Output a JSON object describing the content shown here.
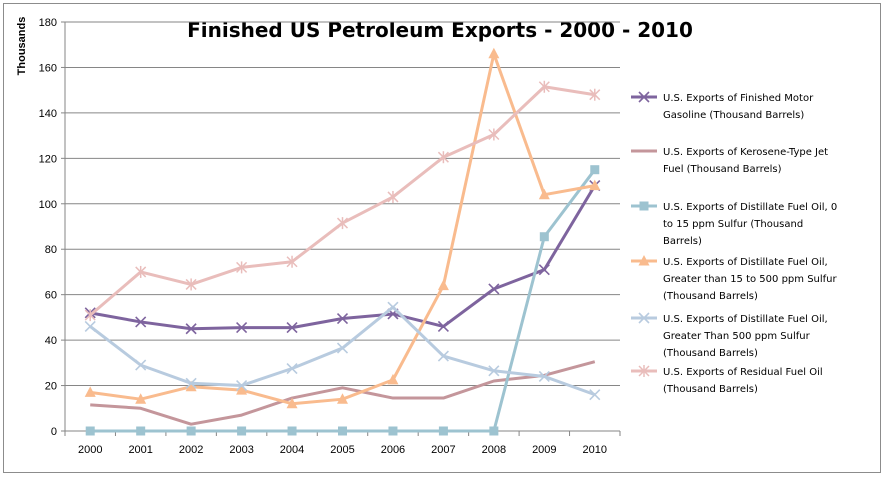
{
  "chart_data": {
    "type": "line",
    "title": "Finished US Petroleum Exports - 2000 - 2010",
    "ylabel": "Thousands",
    "xlabel": "",
    "ylim": [
      0,
      180
    ],
    "yticks": [
      0,
      20,
      40,
      60,
      80,
      100,
      120,
      140,
      160,
      180
    ],
    "categories": [
      "2000",
      "2001",
      "2002",
      "2003",
      "2004",
      "2005",
      "2006",
      "2007",
      "2008",
      "2009",
      "2010"
    ],
    "grid": true,
    "legend_position": "right",
    "series": [
      {
        "name": "U.S. Exports of Finished Motor Gasoline (Thousand Barrels)",
        "legend_lines": [
          "U.S. Exports of Finished Motor",
          "Gasoline (Thousand Barrels)"
        ],
        "color": "#7e649e",
        "marker": "x",
        "values": [
          52,
          48,
          45,
          45.5,
          45.5,
          49.5,
          51.5,
          46,
          62.5,
          71,
          108
        ]
      },
      {
        "name": "U.S. Exports of Kerosene-Type Jet Fuel (Thousand Barrels)",
        "legend_lines": [
          "U.S. Exports of Kerosene-Type Jet",
          "Fuel (Thousand Barrels)"
        ],
        "color": "#c4969b",
        "marker": "none",
        "values": [
          11.5,
          10,
          3,
          7,
          14.5,
          19,
          14.5,
          14.5,
          22,
          24.5,
          30.5
        ]
      },
      {
        "name": "U.S. Exports of Distillate Fuel Oil, 0 to 15 ppm Sulfur (Thousand Barrels)",
        "legend_lines": [
          "U.S. Exports of Distillate Fuel Oil, 0",
          "to 15 ppm Sulfur (Thousand",
          "Barrels)"
        ],
        "color": "#9dc3d0",
        "marker": "square",
        "values": [
          0,
          0,
          0,
          0,
          0,
          0,
          0,
          0,
          0,
          85.5,
          115
        ]
      },
      {
        "name": "U.S. Exports of Distillate Fuel Oil, Greater than 15 to 500 ppm Sulfur (Thousand Barrels)",
        "legend_lines": [
          "U.S. Exports of Distillate Fuel Oil,",
          "Greater than 15 to 500 ppm Sulfur",
          "(Thousand Barrels)"
        ],
        "color": "#f9bb8e",
        "marker": "triangle",
        "values": [
          17,
          14,
          19.5,
          18,
          12,
          14,
          22.5,
          64,
          166,
          104,
          108
        ]
      },
      {
        "name": "U.S. Exports of Distillate Fuel Oil, Greater Than 500 ppm Sulfur (Thousand Barrels)",
        "legend_lines": [
          "U.S. Exports of Distillate Fuel Oil,",
          "Greater Than 500 ppm Sulfur",
          "(Thousand Barrels)"
        ],
        "color": "#b8cbdf",
        "marker": "x",
        "values": [
          46,
          29,
          21,
          20,
          27.5,
          36.5,
          54.5,
          33,
          26.5,
          24,
          16
        ]
      },
      {
        "name": "U.S. Exports of Residual Fuel Oil (Thousand Barrels)",
        "legend_lines": [
          "U.S. Exports of Residual Fuel Oil",
          "(Thousand Barrels)"
        ],
        "color": "#e9bdbb",
        "marker": "star",
        "values": [
          51,
          70,
          64.5,
          72,
          74.5,
          91.5,
          103,
          120.5,
          130.5,
          151.5,
          148
        ]
      }
    ]
  }
}
